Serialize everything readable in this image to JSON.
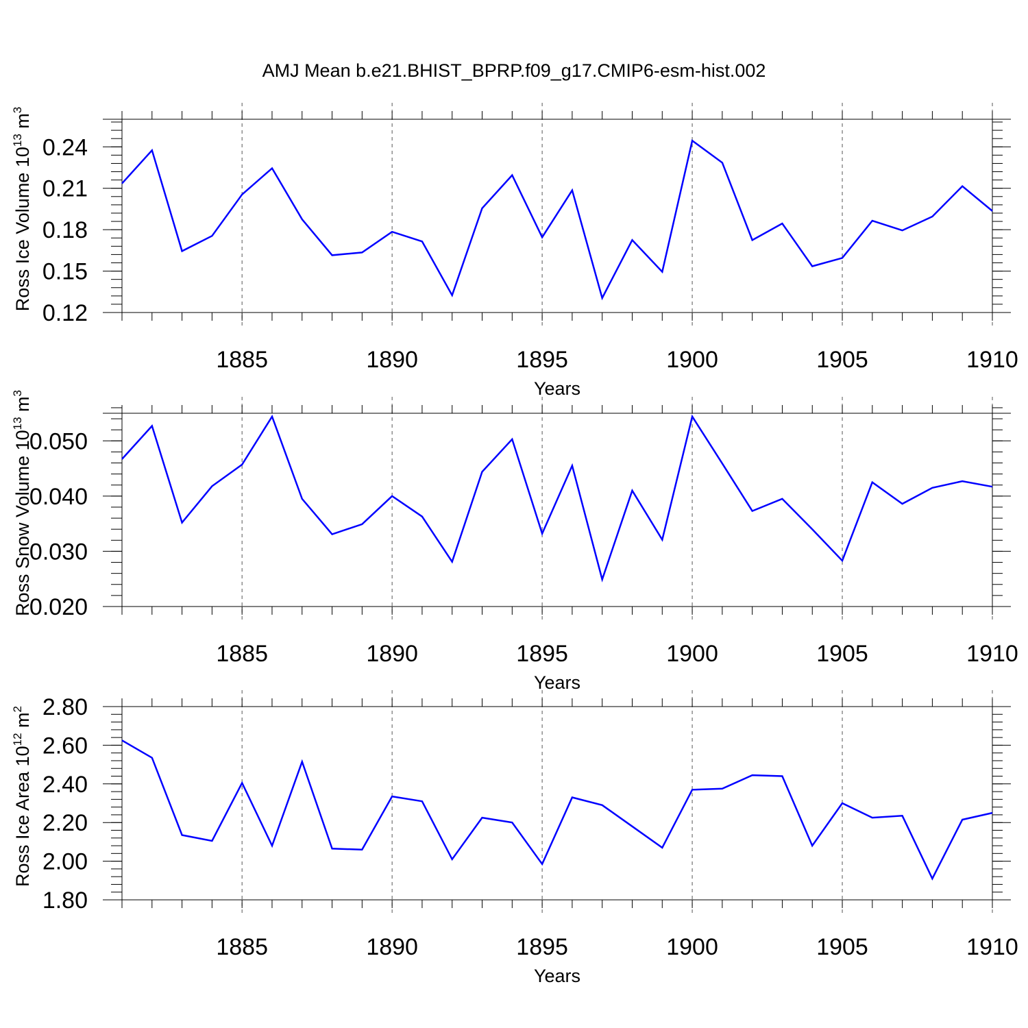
{
  "figure_title": "AMJ Mean b.e21.BHIST_BPRP.f09_g17.CMIP6-esm-hist.002",
  "line_color": "#0000ff",
  "chart_data": [
    {
      "type": "line",
      "title": "AMJ Mean b.e21.BHIST_BPRP.f09_g17.CMIP6-esm-hist.002",
      "xlabel": "Years",
      "ylabel": {
        "text": "Ross Ice Volume 10",
        "exp": "13",
        "unit": " m",
        "unit_exp": "3"
      },
      "xlim": [
        1881,
        1910
      ],
      "ylim": [
        0.12,
        0.26
      ],
      "x_ticks": [
        1885,
        1890,
        1895,
        1900,
        1905,
        1910
      ],
      "y_ticks": [
        0.12,
        0.15,
        0.18,
        0.21,
        0.24
      ],
      "y_tick_labels": [
        "0.12",
        "0.15",
        "0.18",
        "0.21",
        "0.24"
      ],
      "y_minor_step": 0.006,
      "grid": "vertical dashed at major x ticks",
      "x": [
        1881,
        1882,
        1883,
        1884,
        1885,
        1886,
        1887,
        1888,
        1889,
        1890,
        1891,
        1892,
        1893,
        1894,
        1895,
        1896,
        1897,
        1898,
        1899,
        1900,
        1901,
        1902,
        1903,
        1904,
        1905,
        1906,
        1907,
        1908,
        1909,
        1910
      ],
      "series": [
        {
          "values": [
            0.2135,
            0.2375,
            0.1645,
            0.1755,
            0.2055,
            0.2245,
            0.1875,
            0.1615,
            0.1635,
            0.1785,
            0.1715,
            0.1325,
            0.1955,
            0.2195,
            0.1745,
            0.2085,
            0.1305,
            0.1725,
            0.1495,
            0.2445,
            0.2285,
            0.1725,
            0.1845,
            0.1535,
            0.1595,
            0.1865,
            0.1795,
            0.1895,
            0.2115,
            0.1935
          ]
        }
      ]
    },
    {
      "type": "line",
      "xlabel": "Years",
      "ylabel": {
        "text": "Ross Snow Volume 10",
        "exp": "13",
        "unit": " m",
        "unit_exp": "3"
      },
      "xlim": [
        1881,
        1910
      ],
      "ylim": [
        0.02,
        0.055
      ],
      "x_ticks": [
        1885,
        1890,
        1895,
        1900,
        1905,
        1910
      ],
      "y_ticks": [
        0.02,
        0.03,
        0.04,
        0.05
      ],
      "y_tick_labels": [
        "0.020",
        "0.030",
        "0.040",
        "0.050"
      ],
      "y_minor_step": 0.002,
      "grid": "vertical dashed at major x ticks",
      "x": [
        1881,
        1882,
        1883,
        1884,
        1885,
        1886,
        1887,
        1888,
        1889,
        1890,
        1891,
        1892,
        1893,
        1894,
        1895,
        1896,
        1897,
        1898,
        1899,
        1900,
        1901,
        1902,
        1903,
        1904,
        1905,
        1906,
        1907,
        1908,
        1909,
        1910
      ],
      "series": [
        {
          "values": [
            0.0467,
            0.0527,
            0.0352,
            0.0418,
            0.0457,
            0.0544,
            0.0395,
            0.0331,
            0.0349,
            0.04,
            0.0363,
            0.0281,
            0.0444,
            0.0503,
            0.0332,
            0.0455,
            0.0249,
            0.041,
            0.0321,
            0.0544,
            0.0459,
            0.0373,
            0.0395,
            0.034,
            0.0283,
            0.0425,
            0.0386,
            0.0415,
            0.0427,
            0.0417
          ]
        }
      ]
    },
    {
      "type": "line",
      "xlabel": "Years",
      "ylabel": {
        "text": "Ross Ice Area 10",
        "exp": "12",
        "unit": " m",
        "unit_exp": "2"
      },
      "xlim": [
        1881,
        1910
      ],
      "ylim": [
        1.8,
        2.8
      ],
      "x_ticks": [
        1885,
        1890,
        1895,
        1900,
        1905,
        1910
      ],
      "y_ticks": [
        1.8,
        2.0,
        2.2,
        2.4,
        2.6,
        2.8
      ],
      "y_tick_labels": [
        "1.80",
        "2.00",
        "2.20",
        "2.40",
        "2.60",
        "2.80"
      ],
      "y_minor_step": 0.04,
      "grid": "vertical dashed at major x ticks",
      "x": [
        1881,
        1882,
        1883,
        1884,
        1885,
        1886,
        1887,
        1888,
        1889,
        1890,
        1891,
        1892,
        1893,
        1894,
        1895,
        1896,
        1897,
        1898,
        1899,
        1900,
        1901,
        1902,
        1903,
        1904,
        1905,
        1906,
        1907,
        1908,
        1909,
        1910
      ],
      "series": [
        {
          "values": [
            2.625,
            2.535,
            2.135,
            2.105,
            2.405,
            2.08,
            2.515,
            2.065,
            2.06,
            2.335,
            2.31,
            2.01,
            2.225,
            2.2,
            1.985,
            2.33,
            2.29,
            2.18,
            2.07,
            2.37,
            2.375,
            2.445,
            2.44,
            2.08,
            2.3,
            2.225,
            2.235,
            1.91,
            2.215,
            2.25
          ]
        }
      ]
    }
  ]
}
